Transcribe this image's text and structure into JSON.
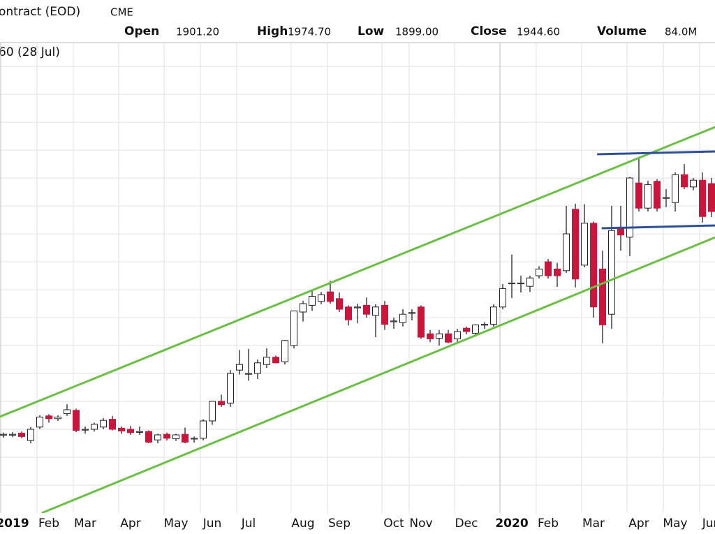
{
  "chart_data": {
    "type": "candlestick",
    "title": "ontract (EOD)",
    "exchange": "CME",
    "subtitle": "60 (28 Jul)",
    "stats": [
      {
        "label": "Open",
        "value": "1901.20"
      },
      {
        "label": "High",
        "value": "1974.70"
      },
      {
        "label": "Low",
        "value": "1899.00"
      },
      {
        "label": "Close",
        "value": "1944.60"
      },
      {
        "label": "Volume",
        "value": "84.0M"
      }
    ],
    "categories": [
      null,
      "2019",
      null,
      null,
      null,
      "Feb",
      null,
      null,
      null,
      "Mar",
      null,
      null,
      null,
      null,
      "Apr",
      null,
      null,
      null,
      null,
      "May",
      null,
      null,
      null,
      "Jun",
      null,
      null,
      null,
      "Jul",
      null,
      null,
      null,
      null,
      null,
      "Aug",
      null,
      null,
      null,
      "Sep",
      null,
      null,
      null,
      null,
      null,
      "Oct",
      null,
      null,
      "Nov",
      null,
      null,
      null,
      null,
      "Dec",
      null,
      null,
      null,
      null,
      "2020",
      null,
      null,
      null,
      "Feb",
      null,
      null,
      null,
      null,
      "Mar",
      null,
      null,
      null,
      null,
      "Apr",
      null,
      null,
      null,
      "May",
      null,
      null,
      null,
      "Jun"
    ],
    "open": [
      1290,
      1291,
      1293,
      1280,
      1304,
      1324,
      1319,
      1328,
      1334,
      1300,
      1300,
      1304,
      1318,
      1302,
      1300,
      1296,
      1296,
      1281,
      1291,
      1283,
      1291,
      1284,
      1284,
      1315,
      1350,
      1347,
      1406,
      1400,
      1400,
      1416,
      1429,
      1421,
      1450,
      1510,
      1522,
      1529,
      1546,
      1534,
      1519,
      1519,
      1522,
      1504,
      1522,
      1494,
      1491,
      1509,
      1519,
      1471,
      1463,
      1471,
      1462,
      1481,
      1472,
      1488,
      1488,
      1519,
      1562,
      1562,
      1556,
      1575,
      1600,
      1587,
      1584,
      1694,
      1594,
      1669,
      1587,
      1506,
      1662,
      1644,
      1741,
      1696,
      1744,
      1715,
      1706,
      1756,
      1734,
      1746,
      1740
    ],
    "high": [
      1294,
      1295,
      1296,
      1304,
      1325,
      1327,
      1325,
      1345,
      1337,
      1305,
      1312,
      1320,
      1324,
      1305,
      1306,
      1305,
      1298,
      1292,
      1294,
      1292,
      1303,
      1287,
      1318,
      1350,
      1362,
      1406,
      1442,
      1444,
      1425,
      1445,
      1432,
      1460,
      1512,
      1530,
      1548,
      1546,
      1566,
      1545,
      1522,
      1525,
      1536,
      1524,
      1530,
      1500,
      1515,
      1515,
      1522,
      1478,
      1478,
      1478,
      1480,
      1484,
      1488,
      1492,
      1524,
      1560,
      1613,
      1575,
      1575,
      1592,
      1605,
      1598,
      1700,
      1704,
      1703,
      1672,
      1620,
      1700,
      1700,
      1752,
      1788,
      1745,
      1748,
      1730,
      1760,
      1775,
      1750,
      1760,
      1750
    ],
    "low": [
      1285,
      1286,
      1284,
      1275,
      1300,
      1312,
      1315,
      1324,
      1295,
      1292,
      1296,
      1300,
      1298,
      1292,
      1290,
      1290,
      1275,
      1275,
      1280,
      1279,
      1275,
      1276,
      1280,
      1308,
      1340,
      1340,
      1398,
      1387,
      1390,
      1410,
      1418,
      1416,
      1445,
      1493,
      1512,
      1524,
      1525,
      1510,
      1486,
      1490,
      1500,
      1465,
      1478,
      1480,
      1484,
      1495,
      1462,
      1456,
      1450,
      1454,
      1455,
      1470,
      1466,
      1480,
      1484,
      1515,
      1535,
      1545,
      1546,
      1570,
      1570,
      1555,
      1580,
      1554,
      1590,
      1500,
      1454,
      1480,
      1620,
      1610,
      1690,
      1690,
      1690,
      1698,
      1690,
      1730,
      1728,
      1670,
      1680
    ],
    "close": [
      1291,
      1291,
      1287,
      1300,
      1322,
      1319,
      1322,
      1335,
      1298,
      1300,
      1309,
      1316,
      1300,
      1297,
      1294,
      1296,
      1277,
      1290,
      1284,
      1290,
      1277,
      1284,
      1315,
      1350,
      1344,
      1400,
      1416,
      1400,
      1419,
      1429,
      1419,
      1459,
      1512,
      1525,
      1538,
      1541,
      1529,
      1515,
      1496,
      1519,
      1506,
      1519,
      1488,
      1494,
      1506,
      1509,
      1465,
      1462,
      1471,
      1456,
      1475,
      1475,
      1487,
      1488,
      1519,
      1552,
      1562,
      1562,
      1571,
      1587,
      1575,
      1575,
      1650,
      1569,
      1669,
      1519,
      1487,
      1656,
      1648,
      1750,
      1696,
      1738,
      1696,
      1715,
      1756,
      1734,
      1746,
      1681,
      1690
    ],
    "up_color": "#ffffff",
    "down_color": "#c8163c",
    "ylim": [
      1150,
      2000
    ],
    "ygrid": [
      1200,
      1250,
      1300,
      1350,
      1400,
      1450,
      1500,
      1550,
      1600,
      1650,
      1700,
      1750,
      1800,
      1850,
      1900,
      1950
    ],
    "grid": true,
    "trendlines": [
      {
        "color": "#6cbf45",
        "x": [
          -0.4,
          78.4
        ],
        "y": [
          1322.5,
          1841.25
        ]
      },
      {
        "color": "#6cbf45",
        "x": [
          4.2,
          78.4
        ],
        "y": [
          1150,
          1643.75
        ]
      },
      {
        "color": "#2e4f96",
        "x": [
          65.4,
          78.4
        ],
        "y": [
          1792.5,
          1797.5
        ]
      },
      {
        "color": "#2e4f96",
        "x": [
          65.9,
          78.4
        ],
        "y": [
          1660,
          1665
        ]
      }
    ]
  }
}
